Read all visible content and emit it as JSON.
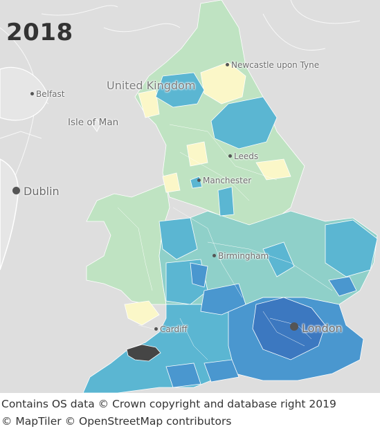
{
  "year": "2018",
  "map": {
    "country_label": "United Kingdom",
    "places": {
      "newcastle": "Newcastle upon Tyne",
      "belfast": "Belfast",
      "isle_of_man": "Isle of Man",
      "leeds": "Leeds",
      "manchester": "Manchester",
      "dublin": "Dublin",
      "birmingham": "Birmingham",
      "cardiff": "Cardiff",
      "london": "London"
    },
    "colors": {
      "background": "#dedede",
      "lowest": "#fbf7c8",
      "low": "#bfe3c2",
      "mid": "#8fd0c9",
      "high": "#5bb6d2",
      "higher": "#4a97cf",
      "highest": "#3c78c0",
      "no_data": "#454545"
    }
  },
  "footer": {
    "line1": "Contains OS data © Crown copyright and database right 2019",
    "line2": "© MapTiler © OpenStreetMap contributors"
  }
}
